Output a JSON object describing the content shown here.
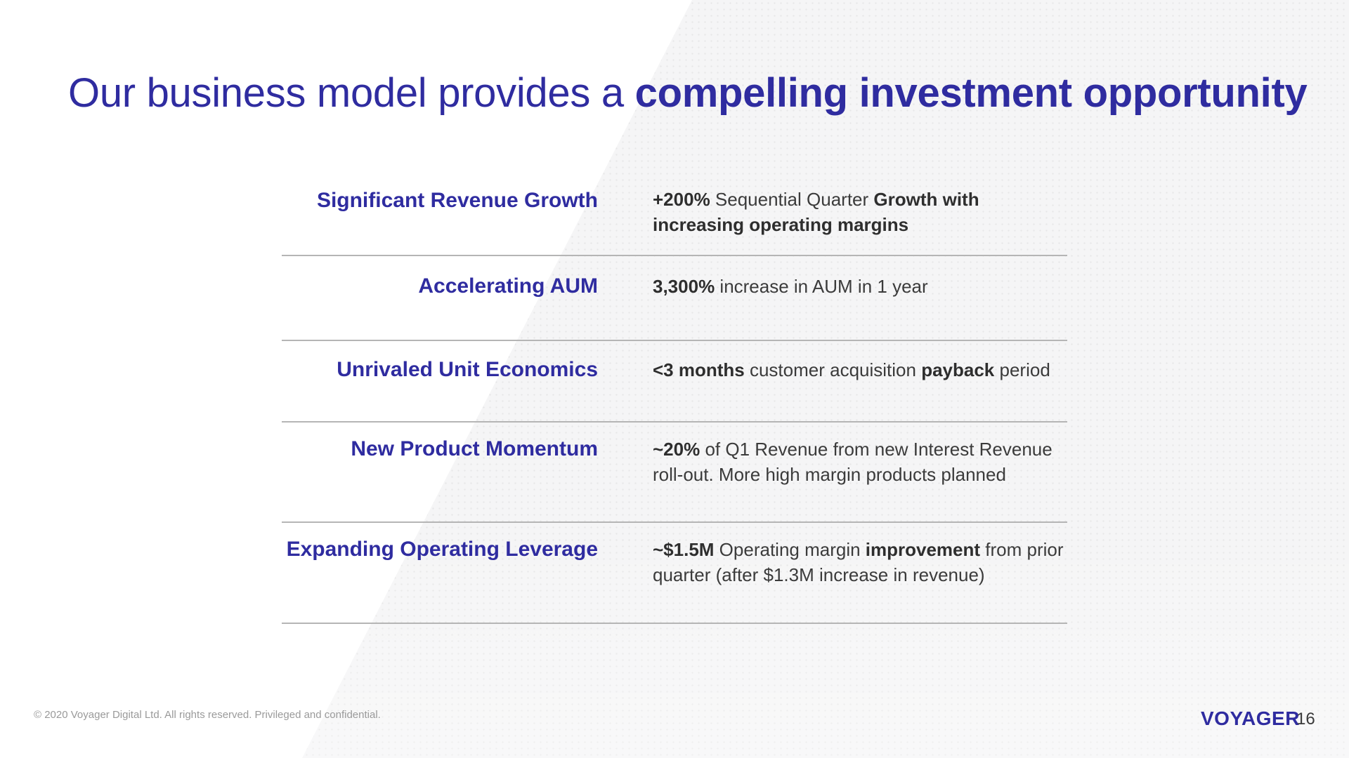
{
  "title": {
    "light": "Our business model provides a",
    "strong": "compelling investment opportunity"
  },
  "rows": [
    {
      "label": "Significant Revenue Growth",
      "desc": [
        {
          "text": "+200%",
          "bold": true
        },
        {
          "text": " Sequential Quarter ",
          "bold": false
        },
        {
          "text": "Growth with increasing operating margins",
          "bold": true
        }
      ]
    },
    {
      "label": "Accelerating AUM",
      "desc": [
        {
          "text": "3,300%",
          "bold": true
        },
        {
          "text": " increase in AUM in 1 year",
          "bold": false
        }
      ]
    },
    {
      "label": "Unrivaled Unit Economics",
      "desc": [
        {
          "text": "<3 months",
          "bold": true
        },
        {
          "text": " customer acquisition ",
          "bold": false
        },
        {
          "text": "payback",
          "bold": true
        },
        {
          "text": " period",
          "bold": false
        }
      ]
    },
    {
      "label": "New Product Momentum",
      "desc": [
        {
          "text": "~20%",
          "bold": true
        },
        {
          "text": " of Q1 Revenue from new Interest Revenue roll-out. More high margin products planned",
          "bold": false
        }
      ]
    },
    {
      "label": "Expanding Operating Leverage",
      "desc": [
        {
          "text": "~$1.5M",
          "bold": true
        },
        {
          "text": " Operating margin ",
          "bold": false
        },
        {
          "text": "improvement",
          "bold": true
        },
        {
          "text": " from prior quarter (after $1.3M increase in revenue)",
          "bold": false
        }
      ]
    }
  ],
  "footer": {
    "copyright": "© 2020 Voyager Digital Ltd. All rights reserved. Privileged and confidential.",
    "logo": "VOYAGER",
    "page_number": "16"
  },
  "colors": {
    "accent": "#2f2ca0",
    "body_text": "#3b3b3b",
    "divider": "#b5b5b5"
  }
}
